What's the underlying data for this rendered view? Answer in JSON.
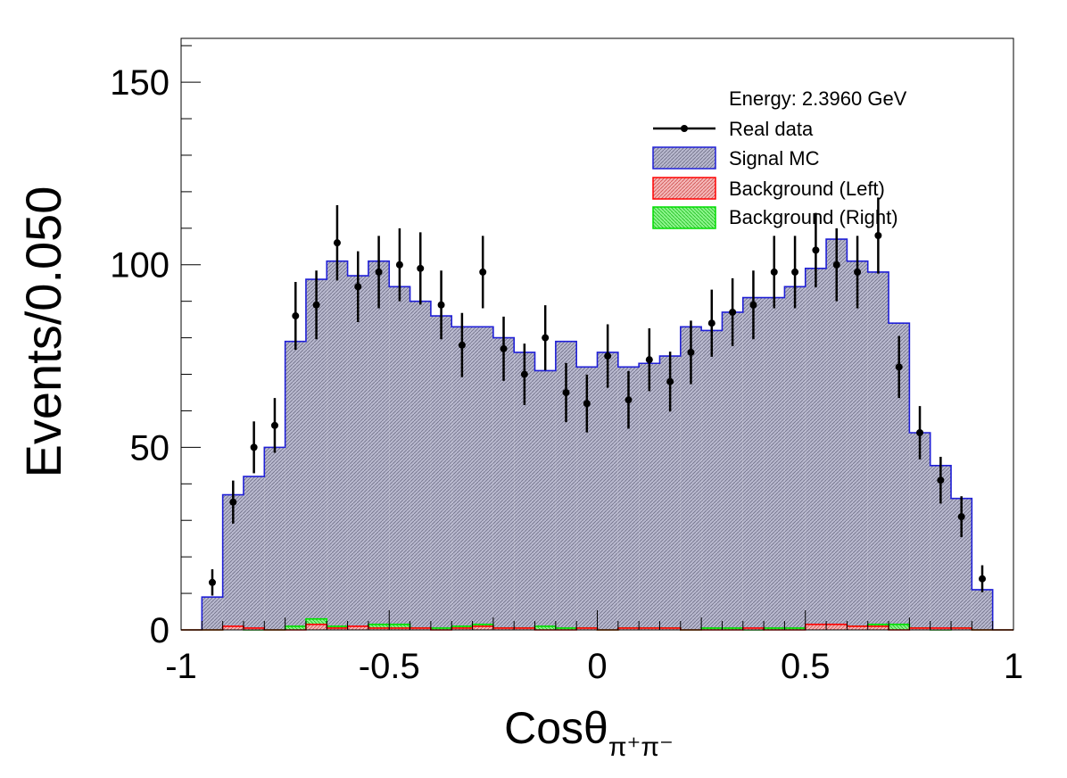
{
  "colors": {
    "data": "#000000",
    "signal_fill": "#a9a9c9",
    "signal_line": "#1f1fd6",
    "bkg_left_line": "#ff0000",
    "bkg_left_fill": "#f0a0a0",
    "bkg_right_line": "#00dd00",
    "bkg_right_fill": "#7cf07c"
  },
  "chart_data": {
    "type": "bar",
    "xlabel_main": "Cosθ",
    "xlabel_sub": "π⁺π⁻",
    "ylabel": "Events/0.050",
    "xlim": [
      -1,
      1
    ],
    "ylim": [
      0,
      162
    ],
    "x_ticks": [
      "-1",
      "-0.5",
      "0",
      "0.5",
      "1"
    ],
    "y_ticks": [
      "0",
      "50",
      "100",
      "150"
    ],
    "legend_title": "Energy: 2.3960 GeV",
    "legend_position": "top-right",
    "legend": [
      {
        "label": "Real data",
        "kind": "marker"
      },
      {
        "label": "Signal MC",
        "kind": "signal"
      },
      {
        "label": "Background (Left)",
        "kind": "bkg_left"
      },
      {
        "label": "Background (Right)",
        "kind": "bkg_right"
      }
    ],
    "bin_edges_start": -1.0,
    "bin_width": 0.05,
    "series": [
      {
        "name": "Signal MC",
        "values": [
          0,
          9,
          37,
          42,
          50,
          79,
          96,
          101,
          97,
          101,
          94,
          90,
          86,
          83,
          83,
          80,
          76,
          71,
          79,
          72,
          76,
          72,
          73,
          75,
          83,
          82,
          87,
          91,
          91,
          94,
          99,
          107,
          101,
          98,
          84,
          54,
          45,
          36,
          11,
          0
        ]
      },
      {
        "name": "Background (Left)",
        "values": [
          0,
          0,
          1,
          0.5,
          0,
          0,
          1.5,
          0.5,
          1,
          0.5,
          0.5,
          0.5,
          0,
          0.5,
          1,
          0.5,
          0.5,
          0,
          0,
          0.5,
          0,
          0.5,
          0.5,
          0.5,
          0,
          0,
          0,
          0.5,
          0,
          0,
          1.5,
          1.5,
          1,
          1,
          0,
          0.5,
          0.5,
          0.5,
          0,
          0
        ]
      },
      {
        "name": "Background (Right)",
        "values": [
          0,
          0,
          0.5,
          0,
          0,
          1,
          3,
          1,
          0.5,
          1.5,
          1.5,
          0.5,
          0.5,
          1,
          1.5,
          0.5,
          0.5,
          1,
          0.5,
          0.5,
          0,
          0.5,
          0.5,
          0.5,
          0,
          0.5,
          0.5,
          0,
          0.5,
          0.5,
          0.5,
          0.5,
          1,
          1.5,
          1.5,
          0.5,
          0,
          0.5,
          0,
          0
        ]
      },
      {
        "name": "Real data",
        "x": [
          -0.925,
          -0.875,
          -0.825,
          -0.775,
          -0.725,
          -0.675,
          -0.625,
          -0.575,
          -0.525,
          -0.475,
          -0.425,
          -0.375,
          -0.325,
          -0.275,
          -0.225,
          -0.175,
          -0.125,
          -0.075,
          -0.025,
          0.025,
          0.075,
          0.125,
          0.175,
          0.225,
          0.275,
          0.325,
          0.375,
          0.425,
          0.475,
          0.525,
          0.575,
          0.625,
          0.675,
          0.725,
          0.775,
          0.825,
          0.875,
          0.925
        ],
        "values": [
          13,
          35,
          50,
          56,
          86,
          89,
          106,
          94,
          98,
          100,
          99,
          89,
          78,
          98,
          77,
          70,
          80,
          65,
          62,
          75,
          63,
          74,
          68,
          76,
          84,
          87,
          89,
          98,
          98,
          104,
          100,
          98,
          108,
          72,
          54,
          41,
          31,
          14
        ],
        "errors": [
          3.6,
          5.9,
          7.1,
          7.5,
          9.3,
          9.4,
          10.3,
          9.7,
          9.9,
          10,
          9.9,
          9.4,
          8.8,
          9.9,
          8.8,
          8.4,
          8.9,
          8.1,
          7.9,
          8.7,
          7.9,
          8.6,
          8.2,
          8.7,
          9.2,
          9.3,
          9.4,
          9.9,
          9.9,
          10.2,
          10,
          9.9,
          10.4,
          8.5,
          7.3,
          6.4,
          5.6,
          3.7
        ]
      }
    ]
  }
}
